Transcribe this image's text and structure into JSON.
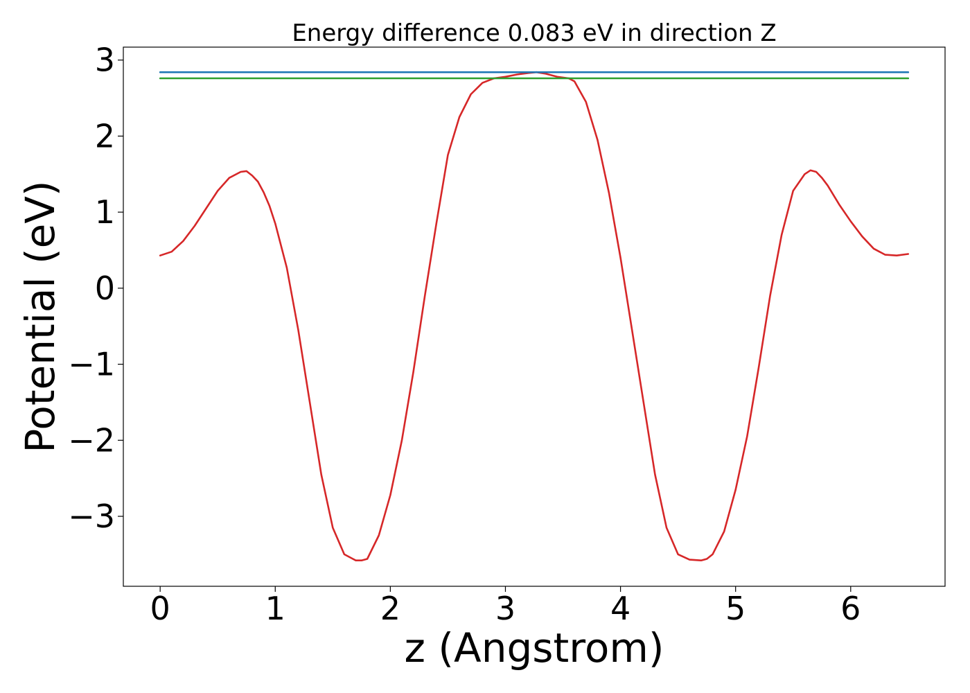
{
  "chart_data": {
    "type": "line",
    "title": "Energy difference 0.083 eV in direction Z",
    "xlabel": "z (Angstrom)",
    "ylabel": "Potential (eV)",
    "xlim": [
      -0.32,
      6.82
    ],
    "ylim": [
      -3.92,
      3.17
    ],
    "grid": false,
    "legend": "none",
    "x_ticks": [
      {
        "value": 0,
        "label": "0"
      },
      {
        "value": 1,
        "label": "1"
      },
      {
        "value": 2,
        "label": "2"
      },
      {
        "value": 3,
        "label": "3"
      },
      {
        "value": 4,
        "label": "4"
      },
      {
        "value": 5,
        "label": "5"
      },
      {
        "value": 6,
        "label": "6"
      }
    ],
    "y_ticks": [
      {
        "value": -3,
        "label": "−3"
      },
      {
        "value": -2,
        "label": "−2"
      },
      {
        "value": -1,
        "label": "−1"
      },
      {
        "value": 0,
        "label": "0"
      },
      {
        "value": 1,
        "label": "1"
      },
      {
        "value": 2,
        "label": "2"
      },
      {
        "value": 3,
        "label": "3"
      }
    ],
    "series": [
      {
        "color": "#d62728",
        "x": [
          0,
          0.1,
          0.2,
          0.3,
          0.4,
          0.5,
          0.6,
          0.7,
          0.75,
          0.8,
          0.85,
          0.9,
          0.95,
          1.0,
          1.1,
          1.2,
          1.3,
          1.4,
          1.5,
          1.6,
          1.7,
          1.75,
          1.8,
          1.9,
          2.0,
          2.1,
          2.2,
          2.3,
          2.4,
          2.5,
          2.6,
          2.7,
          2.8,
          2.9,
          3.0,
          3.1,
          3.2,
          3.27,
          3.35,
          3.45,
          3.55,
          3.6,
          3.7,
          3.8,
          3.9,
          4.0,
          4.1,
          4.2,
          4.3,
          4.4,
          4.5,
          4.6,
          4.7,
          4.75,
          4.8,
          4.9,
          5.0,
          5.1,
          5.2,
          5.3,
          5.4,
          5.5,
          5.6,
          5.65,
          5.7,
          5.75,
          5.8,
          5.9,
          6.0,
          6.1,
          6.2,
          6.3,
          6.4,
          6.5
        ],
        "y": [
          0.43,
          0.48,
          0.62,
          0.82,
          1.05,
          1.28,
          1.45,
          1.53,
          1.54,
          1.48,
          1.4,
          1.26,
          1.08,
          0.85,
          0.27,
          -0.55,
          -1.5,
          -2.45,
          -3.15,
          -3.5,
          -3.58,
          -3.58,
          -3.56,
          -3.25,
          -2.72,
          -2.0,
          -1.1,
          -0.1,
          0.85,
          1.75,
          2.25,
          2.55,
          2.7,
          2.76,
          2.78,
          2.81,
          2.83,
          2.84,
          2.82,
          2.78,
          2.76,
          2.72,
          2.45,
          1.95,
          1.25,
          0.4,
          -0.55,
          -1.5,
          -2.45,
          -3.15,
          -3.5,
          -3.57,
          -3.58,
          -3.56,
          -3.5,
          -3.2,
          -2.65,
          -1.95,
          -1.05,
          -0.1,
          0.7,
          1.28,
          1.5,
          1.55,
          1.53,
          1.45,
          1.35,
          1.1,
          0.88,
          0.68,
          0.52,
          0.44,
          0.43,
          0.45
        ]
      },
      {
        "color": "#1f77b4",
        "x": [
          0,
          6.5
        ],
        "y": [
          2.84,
          2.84
        ]
      },
      {
        "color": "#2ca02c",
        "x": [
          0,
          6.5
        ],
        "y": [
          2.76,
          2.76
        ]
      }
    ]
  }
}
